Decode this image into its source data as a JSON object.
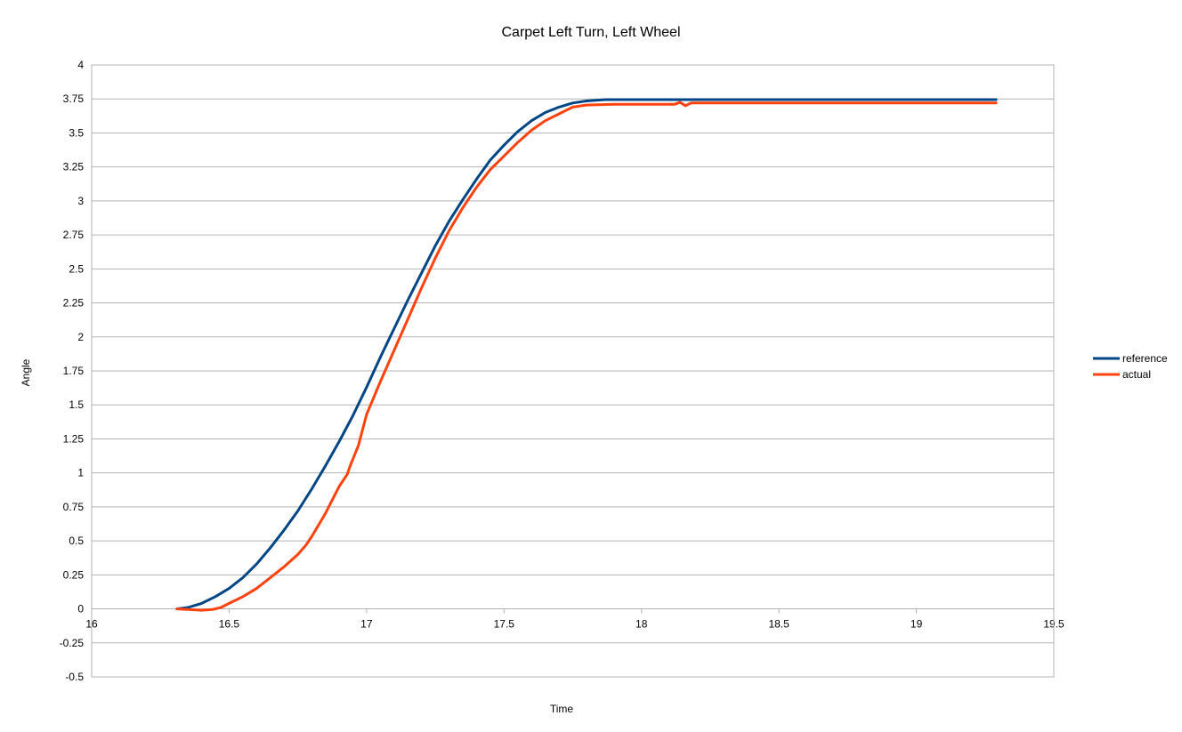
{
  "chart_data": {
    "type": "line",
    "title": "Carpet Left Turn, Left Wheel",
    "xlabel": "Time",
    "ylabel": "Angle",
    "xlim": [
      16,
      19.5
    ],
    "ylim": [
      -0.5,
      4
    ],
    "x_ticks": [
      "16",
      "16.5",
      "17",
      "17.5",
      "18",
      "18.5",
      "19",
      "19.5"
    ],
    "y_ticks": [
      "4",
      "3.75",
      "3.5",
      "3.25",
      "3",
      "2.75",
      "2.5",
      "2.25",
      "2",
      "1.75",
      "1.5",
      "1.25",
      "1",
      "0.75",
      "0.5",
      "0.25",
      "0",
      "-0.25",
      "-0.5"
    ],
    "grid": "horizontal",
    "legend_position": "right",
    "series": [
      {
        "name": "reference",
        "color": "#004586",
        "points": [
          [
            16.31,
            0.0
          ],
          [
            16.35,
            0.01
          ],
          [
            16.4,
            0.04
          ],
          [
            16.45,
            0.09
          ],
          [
            16.5,
            0.15
          ],
          [
            16.55,
            0.23
          ],
          [
            16.6,
            0.33
          ],
          [
            16.65,
            0.45
          ],
          [
            16.7,
            0.58
          ],
          [
            16.75,
            0.72
          ],
          [
            16.8,
            0.88
          ],
          [
            16.85,
            1.05
          ],
          [
            16.9,
            1.23
          ],
          [
            16.95,
            1.42
          ],
          [
            17.0,
            1.63
          ],
          [
            17.05,
            1.85
          ],
          [
            17.1,
            2.06
          ],
          [
            17.15,
            2.27
          ],
          [
            17.2,
            2.47
          ],
          [
            17.25,
            2.67
          ],
          [
            17.3,
            2.85
          ],
          [
            17.35,
            3.01
          ],
          [
            17.4,
            3.16
          ],
          [
            17.45,
            3.3
          ],
          [
            17.5,
            3.41
          ],
          [
            17.55,
            3.51
          ],
          [
            17.6,
            3.59
          ],
          [
            17.65,
            3.65
          ],
          [
            17.7,
            3.69
          ],
          [
            17.75,
            3.72
          ],
          [
            17.8,
            3.735
          ],
          [
            17.87,
            3.745
          ],
          [
            18.0,
            3.745
          ],
          [
            18.5,
            3.745
          ],
          [
            19.0,
            3.745
          ],
          [
            19.29,
            3.745
          ]
        ]
      },
      {
        "name": "actual",
        "color": "#ff420e",
        "points": [
          [
            16.31,
            0.0
          ],
          [
            16.35,
            -0.005
          ],
          [
            16.4,
            -0.01
          ],
          [
            16.44,
            -0.005
          ],
          [
            16.47,
            0.01
          ],
          [
            16.5,
            0.04
          ],
          [
            16.55,
            0.09
          ],
          [
            16.6,
            0.15
          ],
          [
            16.65,
            0.23
          ],
          [
            16.7,
            0.31
          ],
          [
            16.75,
            0.4
          ],
          [
            16.78,
            0.47
          ],
          [
            16.8,
            0.53
          ],
          [
            16.85,
            0.7
          ],
          [
            16.88,
            0.82
          ],
          [
            16.9,
            0.9
          ],
          [
            16.93,
            0.99
          ],
          [
            16.94,
            1.05
          ],
          [
            16.95,
            1.1
          ],
          [
            16.97,
            1.2
          ],
          [
            17.0,
            1.43
          ],
          [
            17.05,
            1.67
          ],
          [
            17.1,
            1.9
          ],
          [
            17.15,
            2.13
          ],
          [
            17.2,
            2.36
          ],
          [
            17.25,
            2.58
          ],
          [
            17.3,
            2.78
          ],
          [
            17.35,
            2.95
          ],
          [
            17.4,
            3.1
          ],
          [
            17.45,
            3.23
          ],
          [
            17.5,
            3.33
          ],
          [
            17.55,
            3.43
          ],
          [
            17.6,
            3.52
          ],
          [
            17.65,
            3.59
          ],
          [
            17.7,
            3.64
          ],
          [
            17.75,
            3.69
          ],
          [
            17.8,
            3.705
          ],
          [
            17.9,
            3.71
          ],
          [
            18.0,
            3.71
          ],
          [
            18.12,
            3.71
          ],
          [
            18.14,
            3.725
          ],
          [
            18.16,
            3.7
          ],
          [
            18.18,
            3.72
          ],
          [
            18.5,
            3.72
          ],
          [
            19.0,
            3.72
          ],
          [
            19.29,
            3.72
          ]
        ]
      }
    ]
  }
}
